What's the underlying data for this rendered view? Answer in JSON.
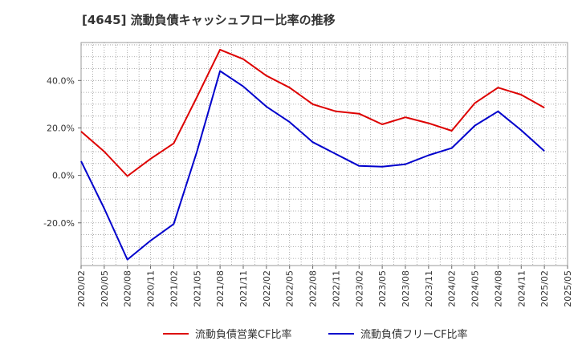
{
  "title": "[4645]  流動負債キャッシュフロー比率の推移",
  "chart_data": {
    "type": "line",
    "title": "[4645]  流動負債キャッシュフロー比率の推移",
    "x": [
      "2020/02",
      "2020/05",
      "2020/08",
      "2020/11",
      "2021/02",
      "2021/05",
      "2021/08",
      "2021/11",
      "2022/02",
      "2022/05",
      "2022/08",
      "2022/11",
      "2023/02",
      "2023/05",
      "2023/08",
      "2023/11",
      "2024/02",
      "2024/05",
      "2024/08",
      "2024/11",
      "2025/02",
      "2025/05"
    ],
    "y_ticks": [
      -20,
      0,
      20,
      40
    ],
    "y_tick_labels": [
      "-20.0%",
      "0.0%",
      "20.0%",
      "40.0%"
    ],
    "ylim": [
      -38,
      56
    ],
    "grid": true,
    "legend_position": "bottom",
    "series": [
      {
        "name": "流動負債営業CF比率",
        "color": "#dd0000",
        "values": [
          18.5,
          10,
          -0.3,
          7,
          13.5,
          33,
          53,
          49,
          42,
          37,
          30,
          27,
          26,
          21.5,
          24.5,
          22,
          18.8,
          30.5,
          37,
          34,
          28.5,
          null
        ]
      },
      {
        "name": "流動負債フリーCF比率",
        "color": "#0000cc",
        "values": [
          6,
          -14,
          -35.5,
          -27.5,
          -20.5,
          10,
          44,
          37.5,
          29,
          22.5,
          14,
          9,
          4,
          3.7,
          4.7,
          8.5,
          11.5,
          21,
          27,
          19,
          10.3,
          null
        ]
      }
    ]
  }
}
